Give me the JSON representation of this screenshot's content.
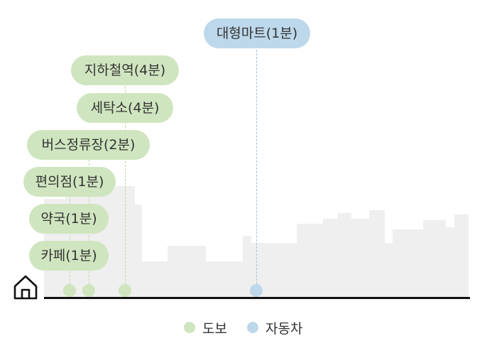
{
  "categories": [
    {
      "id": "walk",
      "label": "도보",
      "color": "#cfe5bf",
      "dot_color": "#cfe5bf",
      "line_color": "#b9d7a5"
    },
    {
      "id": "car",
      "label": "자동차",
      "color": "#bdd8ea",
      "dot_color": "#bdd8ea",
      "line_color": "#9cc4df"
    }
  ],
  "places": [
    {
      "label": "대형마트(1분)",
      "mode": "car"
    },
    {
      "label": "지하철역(4분)",
      "mode": "walk"
    },
    {
      "label": "세탁소(4분)",
      "mode": "walk"
    },
    {
      "label": "버스정류장(2분)",
      "mode": "walk"
    },
    {
      "label": "편의점(1분)",
      "mode": "walk"
    },
    {
      "label": "약국(1분)",
      "mode": "walk"
    },
    {
      "label": "카페(1분)",
      "mode": "walk"
    }
  ],
  "home_icon": "home-icon",
  "skyline_color": "#efefef"
}
